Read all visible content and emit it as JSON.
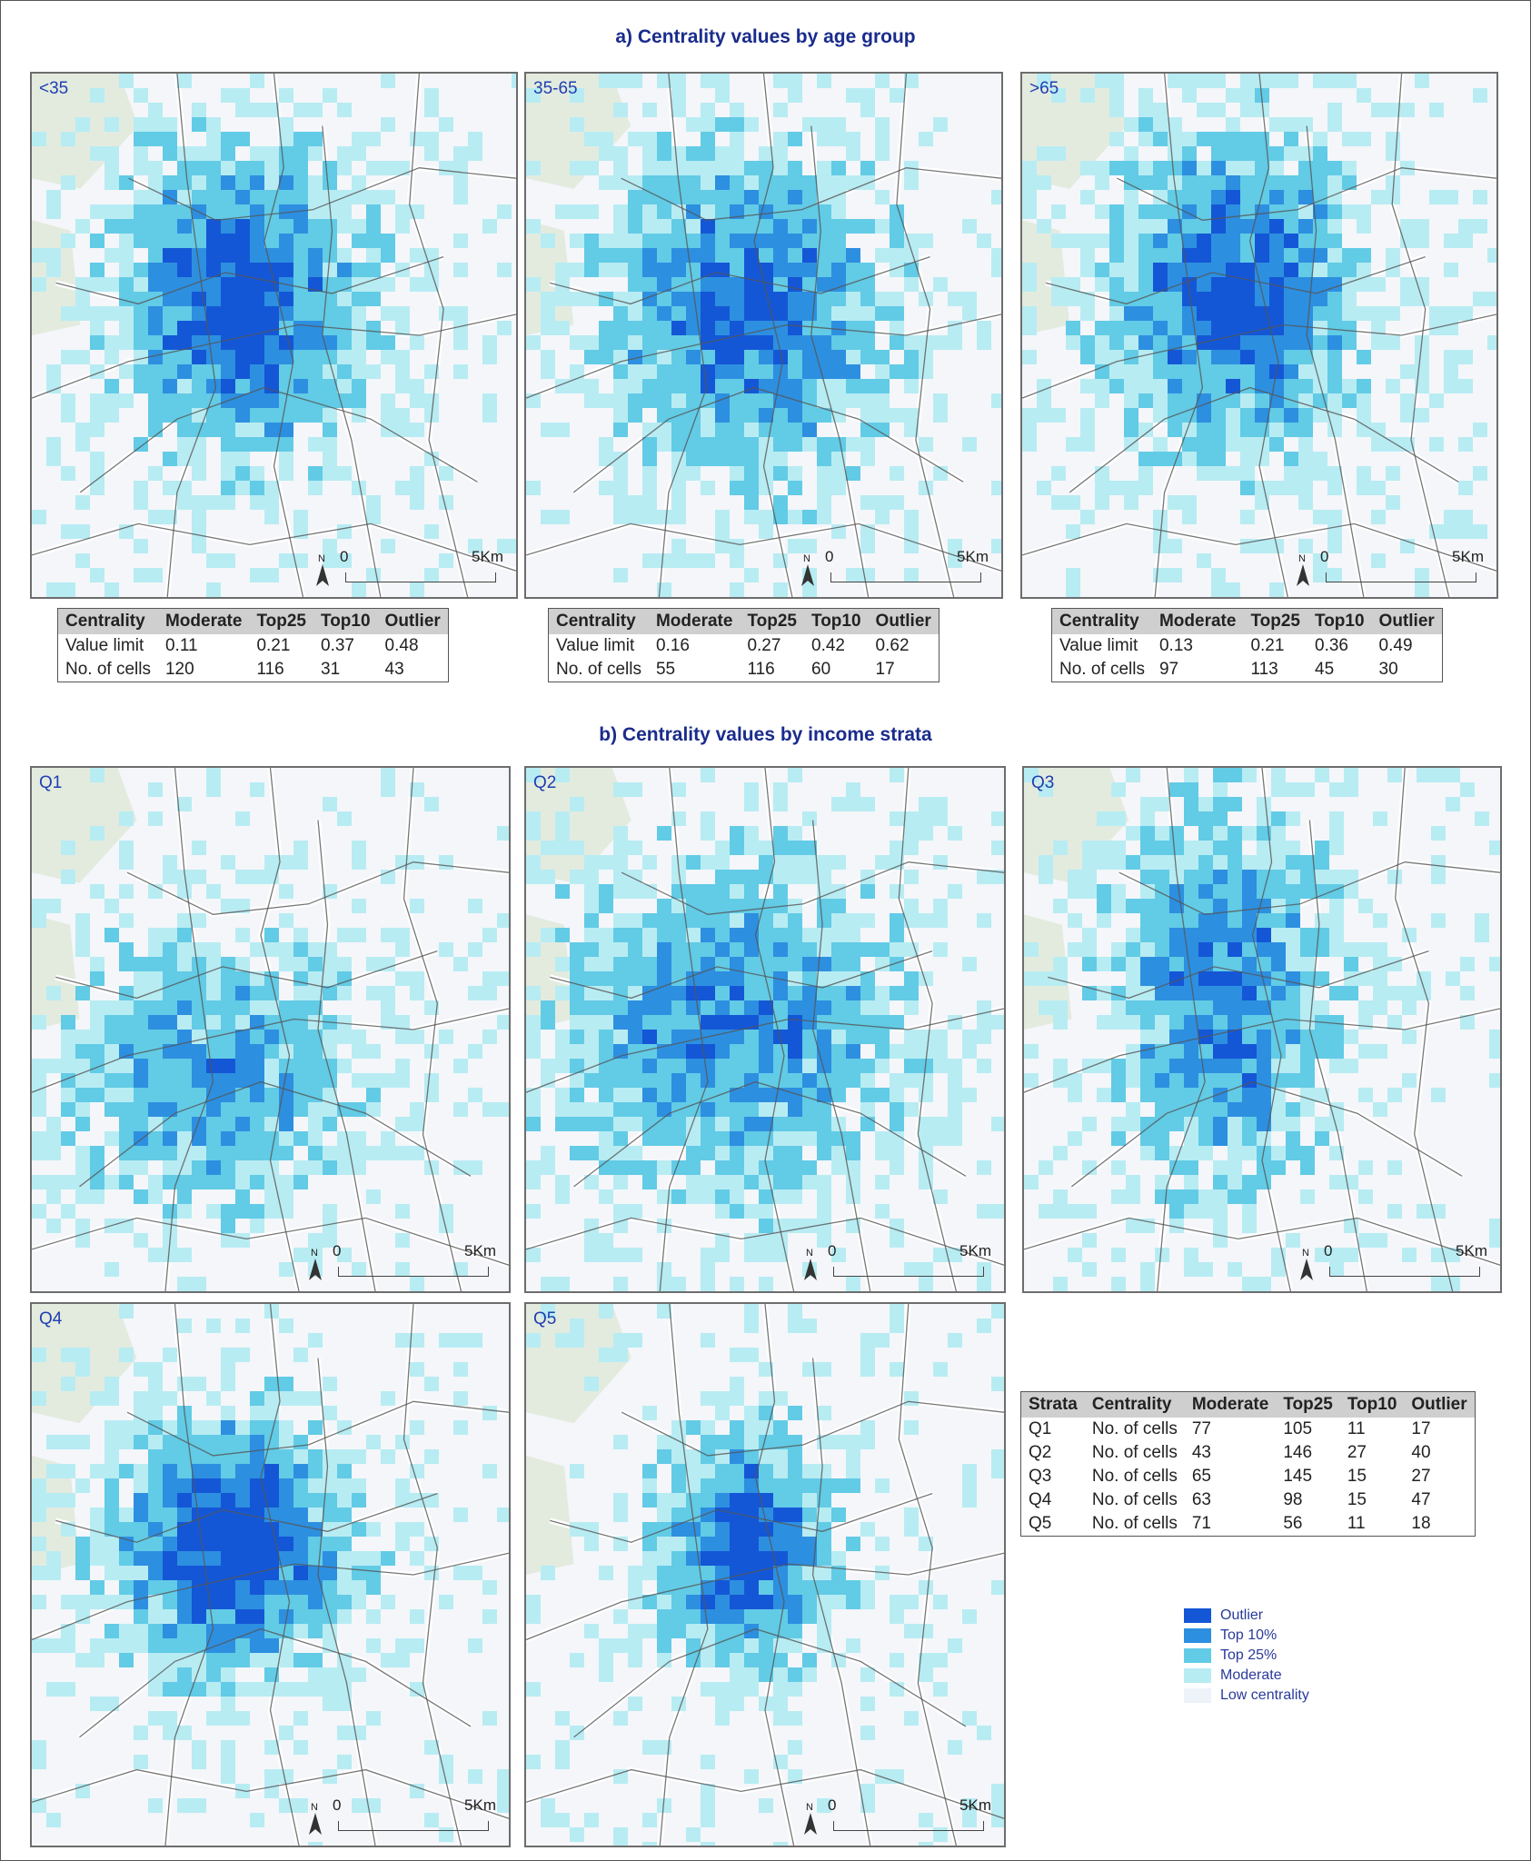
{
  "titles": {
    "age": "a) Centrality values by age group",
    "income": "b) Centrality values by income strata"
  },
  "colors": {
    "outlier": "#1457d6",
    "top10": "#2d8fe0",
    "top25": "#62cbe6",
    "moderate": "#b8ecf3",
    "low": "#eef3f9",
    "green": "#e3ebdf",
    "title": "#1a2c8c"
  },
  "scale": {
    "zero": "0",
    "five": "5Km",
    "north": "N"
  },
  "maps": [
    {
      "label": "<35"
    },
    {
      "label": "35-65"
    },
    {
      "label": ">65"
    },
    {
      "label": "Q1"
    },
    {
      "label": "Q2"
    },
    {
      "label": "Q3"
    },
    {
      "label": "Q4"
    },
    {
      "label": "Q5"
    }
  ],
  "age_tables": [
    {
      "headers": [
        "Centrality",
        "Moderate",
        "Top25",
        "Top10",
        "Outlier"
      ],
      "rows": [
        [
          "Value limit",
          "0.11",
          "0.21",
          "0.37",
          "0.48"
        ],
        [
          "No. of cells",
          "120",
          "116",
          "31",
          "43"
        ]
      ]
    },
    {
      "headers": [
        "Centrality",
        "Moderate",
        "Top25",
        "Top10",
        "Outlier"
      ],
      "rows": [
        [
          "Value limit",
          "0.16",
          "0.27",
          "0.42",
          "0.62"
        ],
        [
          "No. of cells",
          "55",
          "116",
          "60",
          "17"
        ]
      ]
    },
    {
      "headers": [
        "Centrality",
        "Moderate",
        "Top25",
        "Top10",
        "Outlier"
      ],
      "rows": [
        [
          "Value limit",
          "0.13",
          "0.21",
          "0.36",
          "0.49"
        ],
        [
          "No. of cells",
          "97",
          "113",
          "45",
          "30"
        ]
      ]
    }
  ],
  "strata_table": {
    "headers": [
      "Strata",
      "Centrality",
      "Moderate",
      "Top25",
      "Top10",
      "Outlier"
    ],
    "rows": [
      [
        "Q1",
        "No. of cells",
        "77",
        "105",
        "11",
        "17"
      ],
      [
        "Q2",
        "No. of cells",
        "43",
        "146",
        "27",
        "40"
      ],
      [
        "Q3",
        "No. of cells",
        "65",
        "145",
        "15",
        "27"
      ],
      [
        "Q4",
        "No. of cells",
        "63",
        "98",
        "15",
        "47"
      ],
      [
        "Q5",
        "No. of cells",
        "71",
        "56",
        "11",
        "18"
      ]
    ]
  },
  "legend": [
    {
      "label": "Outlier",
      "color": "#1457d6"
    },
    {
      "label": "Top 10%",
      "color": "#2d8fe0"
    },
    {
      "label": "Top 25%",
      "color": "#62cbe6"
    },
    {
      "label": "Moderate",
      "color": "#b8ecf3"
    },
    {
      "label": "Low centrality",
      "color": "#eef3f9"
    }
  ]
}
